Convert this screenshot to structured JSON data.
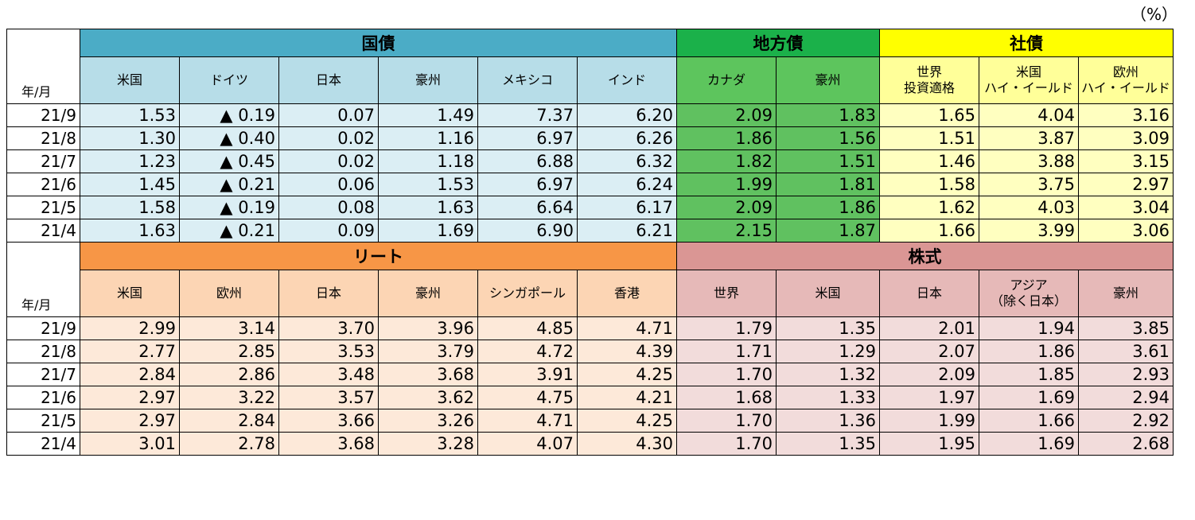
{
  "unit": "（%）",
  "corner_label": "年/月",
  "top": {
    "groups": {
      "kokusai": "国債",
      "chihousai": "地方債",
      "shasai": "社債"
    },
    "columns": [
      "米国",
      "ドイツ",
      "日本",
      "豪州",
      "メキシコ",
      "インド",
      "カナダ",
      "豪州",
      "世界\n投資適格",
      "米国\nハイ・イールド",
      "欧州\nハイ・イールド"
    ],
    "rows": [
      {
        "label": "21/9",
        "values": [
          "1.53",
          "▲ 0.19",
          "0.07",
          "1.49",
          "7.37",
          "6.20",
          "2.09",
          "1.83",
          "1.65",
          "4.04",
          "3.16"
        ]
      },
      {
        "label": "21/8",
        "values": [
          "1.30",
          "▲ 0.40",
          "0.02",
          "1.16",
          "6.97",
          "6.26",
          "1.86",
          "1.56",
          "1.51",
          "3.87",
          "3.09"
        ]
      },
      {
        "label": "21/7",
        "values": [
          "1.23",
          "▲ 0.45",
          "0.02",
          "1.18",
          "6.88",
          "6.32",
          "1.82",
          "1.51",
          "1.46",
          "3.88",
          "3.15"
        ]
      },
      {
        "label": "21/6",
        "values": [
          "1.45",
          "▲ 0.21",
          "0.06",
          "1.53",
          "6.97",
          "6.24",
          "1.99",
          "1.81",
          "1.58",
          "3.75",
          "2.97"
        ]
      },
      {
        "label": "21/5",
        "values": [
          "1.58",
          "▲ 0.19",
          "0.08",
          "1.63",
          "6.64",
          "6.17",
          "2.09",
          "1.86",
          "1.62",
          "4.03",
          "3.04"
        ]
      },
      {
        "label": "21/4",
        "values": [
          "1.63",
          "▲ 0.21",
          "0.09",
          "1.69",
          "6.90",
          "6.21",
          "2.15",
          "1.87",
          "1.66",
          "3.99",
          "3.06"
        ]
      }
    ]
  },
  "bottom": {
    "groups": {
      "reit": "リート",
      "kabushiki": "株式"
    },
    "columns": [
      "米国",
      "欧州",
      "日本",
      "豪州",
      "シンガポール",
      "香港",
      "世界",
      "米国",
      "日本",
      "アジア\n（除く日本）",
      "豪州"
    ],
    "rows": [
      {
        "label": "21/9",
        "values": [
          "2.99",
          "3.14",
          "3.70",
          "3.96",
          "4.85",
          "4.71",
          "1.79",
          "1.35",
          "2.01",
          "1.94",
          "3.85"
        ]
      },
      {
        "label": "21/8",
        "values": [
          "2.77",
          "2.85",
          "3.53",
          "3.79",
          "4.72",
          "4.39",
          "1.71",
          "1.29",
          "2.07",
          "1.86",
          "3.61"
        ]
      },
      {
        "label": "21/7",
        "values": [
          "2.84",
          "2.86",
          "3.48",
          "3.68",
          "3.91",
          "4.25",
          "1.70",
          "1.32",
          "2.09",
          "1.85",
          "2.93"
        ]
      },
      {
        "label": "21/6",
        "values": [
          "2.97",
          "3.22",
          "3.57",
          "3.62",
          "4.75",
          "4.21",
          "1.68",
          "1.33",
          "1.97",
          "1.69",
          "2.94"
        ]
      },
      {
        "label": "21/5",
        "values": [
          "2.97",
          "2.84",
          "3.66",
          "3.26",
          "4.71",
          "4.25",
          "1.70",
          "1.36",
          "1.99",
          "1.66",
          "2.92"
        ]
      },
      {
        "label": "21/4",
        "values": [
          "3.01",
          "2.78",
          "3.68",
          "3.28",
          "4.07",
          "4.30",
          "1.70",
          "1.35",
          "1.95",
          "1.69",
          "2.68"
        ]
      }
    ]
  },
  "colors": {
    "kokusai_header": "#4bacc6",
    "chihousai_header": "#1bb14a",
    "shasai_header": "#ffff00",
    "reit_header": "#f79646",
    "kabushiki_header": "#da9694"
  }
}
